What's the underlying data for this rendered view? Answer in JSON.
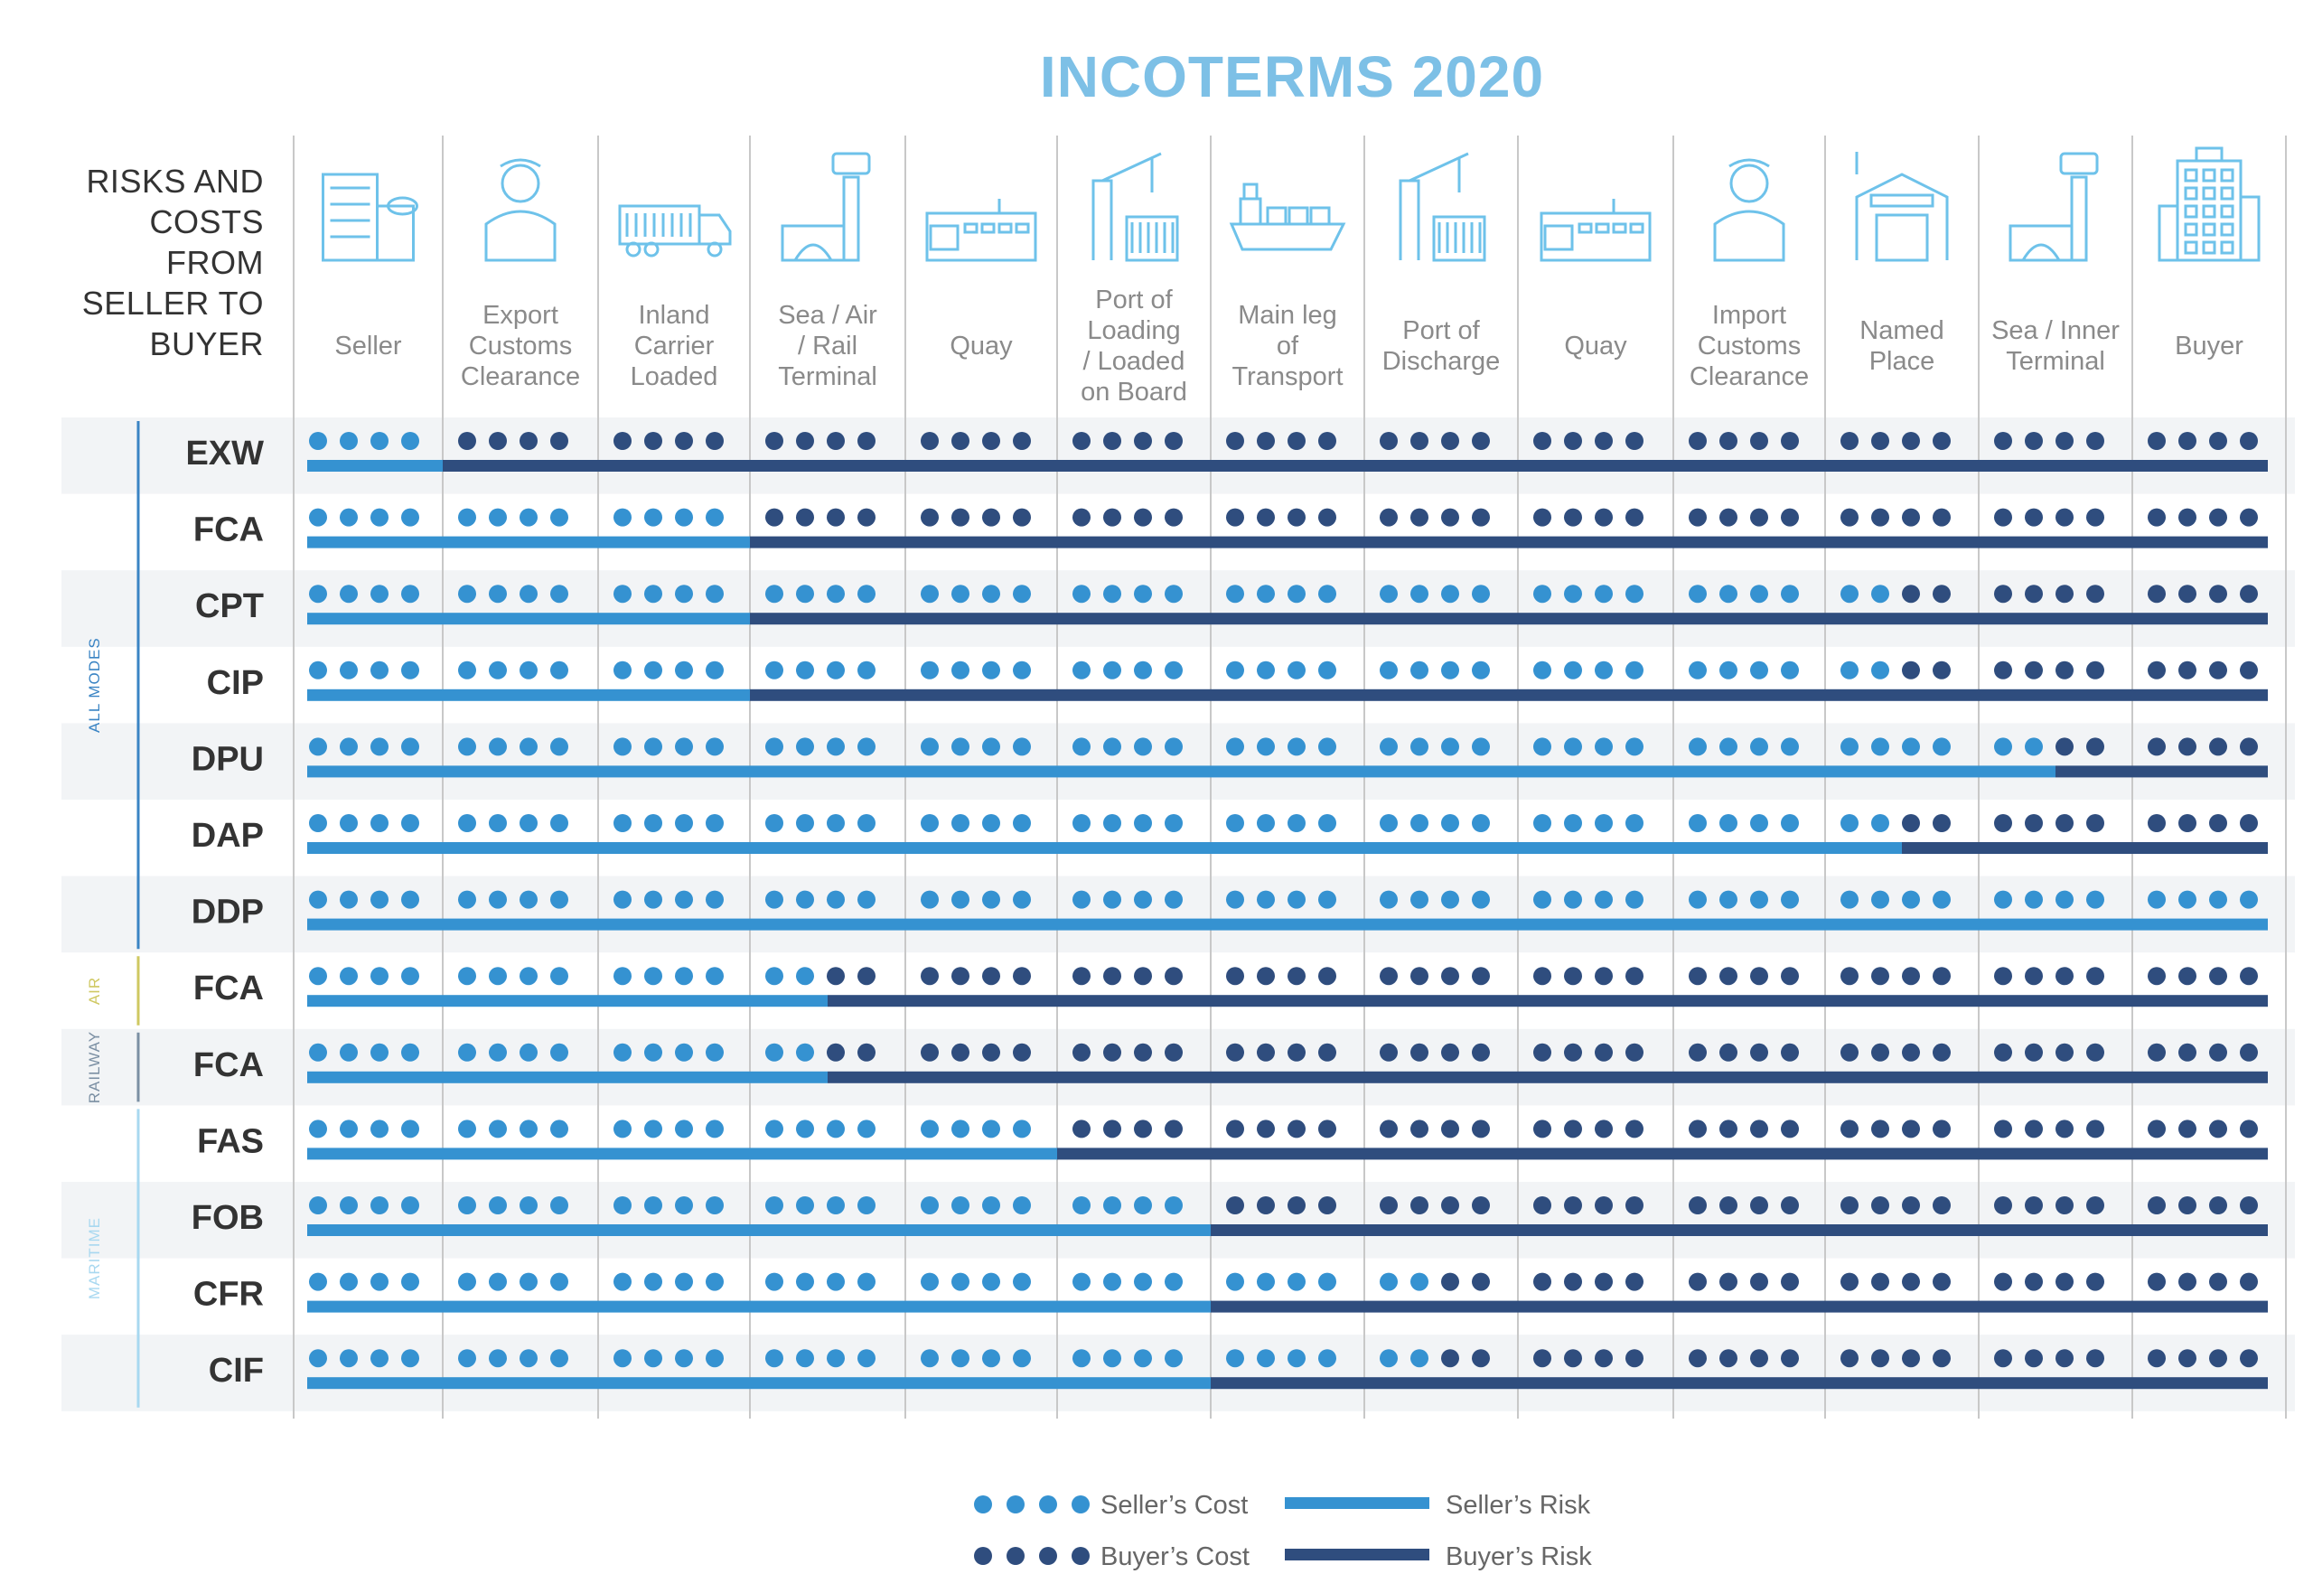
{
  "title": "INCOTERMS 2020",
  "header_label": [
    "RISKS AND",
    "COSTS",
    "FROM",
    "SELLER TO",
    "BUYER"
  ],
  "colors": {
    "seller": "#3592d1",
    "buyer": "#2f4d7e",
    "title": "#7dc0e6",
    "grid": "#c8c8c8",
    "stripe": "#f2f4f6",
    "icon": "#6ec2ea",
    "group_all_modes": "#3a84c4",
    "group_air": "#cfc861",
    "group_railway": "#7b8fa3",
    "group_maritime": "#a8d8f0"
  },
  "stages": [
    {
      "label": [
        "Seller"
      ],
      "icon": "office-building-icon"
    },
    {
      "label": [
        "Export",
        "Customs",
        "Clearance"
      ],
      "icon": "customs-officer-icon"
    },
    {
      "label": [
        "Inland",
        "Carrier",
        "Loaded"
      ],
      "icon": "truck-icon"
    },
    {
      "label": [
        "Sea / Air",
        "/ Rail",
        "Terminal"
      ],
      "icon": "terminal-tower-icon"
    },
    {
      "label": [
        "Quay"
      ],
      "icon": "quay-warehouse-icon"
    },
    {
      "label": [
        "Port of",
        "Loading",
        "/ Loaded",
        "on Board"
      ],
      "icon": "port-crane-icon"
    },
    {
      "label": [
        "Main leg",
        "of",
        "Transport"
      ],
      "icon": "cargo-ship-icon"
    },
    {
      "label": [
        "Port of",
        "Discharge"
      ],
      "icon": "port-crane-icon"
    },
    {
      "label": [
        "Quay"
      ],
      "icon": "quay-warehouse-icon"
    },
    {
      "label": [
        "Import",
        "Customs",
        "Clearance"
      ],
      "icon": "customs-officer-icon"
    },
    {
      "label": [
        "Named",
        "Place"
      ],
      "icon": "warehouse-icon"
    },
    {
      "label": [
        "Sea / Inner",
        "Terminal"
      ],
      "icon": "terminal-tower-icon"
    },
    {
      "label": [
        "Buyer"
      ],
      "icon": "office-tower-icon"
    }
  ],
  "groups": [
    {
      "label": "ALL MODES",
      "rows": [
        0,
        6
      ],
      "color_key": "group_all_modes"
    },
    {
      "label": "AIR",
      "rows": [
        7,
        7
      ],
      "color_key": "group_air"
    },
    {
      "label": "RAILWAY",
      "rows": [
        8,
        8
      ],
      "color_key": "group_railway"
    },
    {
      "label": "MARITIME",
      "rows": [
        9,
        12
      ],
      "color_key": "group_maritime"
    }
  ],
  "rows": [
    {
      "term": "EXW",
      "seller_dots": 4,
      "risk_transfer": 1
    },
    {
      "term": "FCA",
      "seller_dots": 12,
      "risk_transfer": 3
    },
    {
      "term": "CPT",
      "seller_dots": 42,
      "risk_transfer": 3
    },
    {
      "term": "CIP",
      "seller_dots": 42,
      "risk_transfer": 3
    },
    {
      "term": "DPU",
      "seller_dots": 46,
      "risk_transfer": 11.5
    },
    {
      "term": "DAP",
      "seller_dots": 42,
      "risk_transfer": 10.5
    },
    {
      "term": "DDP",
      "seller_dots": 52,
      "risk_transfer": 13
    },
    {
      "term": "FCA",
      "seller_dots": 14,
      "risk_transfer": 3.5
    },
    {
      "term": "FCA",
      "seller_dots": 14,
      "risk_transfer": 3.5
    },
    {
      "term": "FAS",
      "seller_dots": 20,
      "risk_transfer": 5
    },
    {
      "term": "FOB",
      "seller_dots": 24,
      "risk_transfer": 6
    },
    {
      "term": "CFR",
      "seller_dots": 30,
      "risk_transfer": 6
    },
    {
      "term": "CIF",
      "seller_dots": 30,
      "risk_transfer": 6
    }
  ],
  "legend": {
    "seller_cost": "Seller’s Cost",
    "buyer_cost": "Buyer’s Cost",
    "seller_risk": "Seller’s Risk",
    "buyer_risk": "Buyer’s Risk"
  }
}
